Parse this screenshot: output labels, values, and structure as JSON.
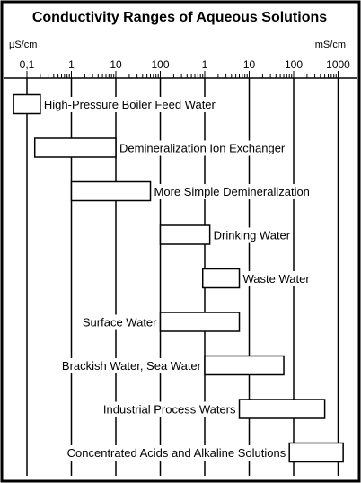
{
  "chart_data": {
    "type": "bar",
    "orientation": "horizontal-range",
    "title": "Conductivity Ranges of Aqueous Solutions",
    "x_scale": "log",
    "x_unit_left": "µS/cm",
    "x_unit_right": "mS/cm",
    "xlim_uS_cm": [
      0.1,
      1000000
    ],
    "ticks": [
      {
        "value_uS_cm": 0.1,
        "label": "0,1"
      },
      {
        "value_uS_cm": 1,
        "label": "1"
      },
      {
        "value_uS_cm": 10,
        "label": "10"
      },
      {
        "value_uS_cm": 100,
        "label": "100"
      },
      {
        "value_uS_cm": 1000,
        "label": "1"
      },
      {
        "value_uS_cm": 10000,
        "label": "10"
      },
      {
        "value_uS_cm": 100000,
        "label": "100"
      },
      {
        "value_uS_cm": 1000000,
        "label": "1000"
      }
    ],
    "grid": true,
    "ranges": [
      {
        "label": "High-Pressure Boiler Feed Water",
        "min_uS_cm": 0.05,
        "max_uS_cm": 0.2,
        "label_side": "right"
      },
      {
        "label": "Demineralization Ion Exchanger",
        "min_uS_cm": 0.15,
        "max_uS_cm": 10,
        "label_side": "right"
      },
      {
        "label": "More Simple Demineralization",
        "min_uS_cm": 1,
        "max_uS_cm": 60,
        "label_side": "right"
      },
      {
        "label": "Drinking Water",
        "min_uS_cm": 100,
        "max_uS_cm": 1300,
        "label_side": "right"
      },
      {
        "label": "Waste Water",
        "min_uS_cm": 900,
        "max_uS_cm": 6000,
        "label_side": "right"
      },
      {
        "label": "Surface Water",
        "min_uS_cm": 100,
        "max_uS_cm": 6000,
        "label_side": "left"
      },
      {
        "label": "Brackish Water, Sea Water",
        "min_uS_cm": 1000,
        "max_uS_cm": 60000,
        "label_side": "left"
      },
      {
        "label": "Industrial Process Waters",
        "min_uS_cm": 6000,
        "max_uS_cm": 500000,
        "label_side": "left"
      },
      {
        "label": "Concentrated Acids and Alkaline Solutions",
        "min_uS_cm": 80000,
        "max_uS_cm": 1300000,
        "label_side": "left"
      }
    ]
  }
}
